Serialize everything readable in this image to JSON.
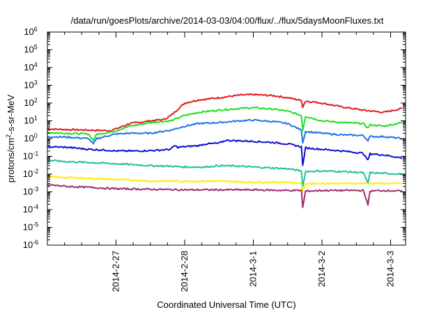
{
  "chart_data": {
    "type": "line",
    "title": "/data/run/goesPlots/archive/2014-03-03/04:00/flux/../flux/5daysMoonFluxes.txt",
    "xlabel": "Coordinated Universal Time (UTC)",
    "ylabel": {
      "prefix": "protons/cm",
      "sup": "2",
      "suffix": "-s-sr-MeV"
    },
    "yscale": "log",
    "ylim": [
      1e-06,
      1000000.0
    ],
    "xlim": [
      "2014-02-26 00:00",
      "2014-03-03 04:00"
    ],
    "grid": false,
    "legend": "none",
    "y_ticks": [
      {
        "base": "10",
        "exp": "6"
      },
      {
        "base": "10",
        "exp": "5"
      },
      {
        "base": "10",
        "exp": "4"
      },
      {
        "base": "10",
        "exp": "3"
      },
      {
        "base": "10",
        "exp": "2"
      },
      {
        "base": "10",
        "exp": "1"
      },
      {
        "base": "10",
        "exp": "0"
      },
      {
        "base": "10",
        "exp": "-1"
      },
      {
        "base": "10",
        "exp": "-2"
      },
      {
        "base": "10",
        "exp": "-3"
      },
      {
        "base": "10",
        "exp": "-4"
      },
      {
        "base": "10",
        "exp": "-5"
      },
      {
        "base": "10",
        "exp": "-6"
      }
    ],
    "x_ticks": [
      "2014-2-27",
      "2014-2-28",
      "2014-3-1",
      "2014-3-2",
      "2014-3-3"
    ],
    "series": [
      {
        "color": "#e41a1c",
        "points": [
          [
            0,
            3.5
          ],
          [
            0.3,
            3.2
          ],
          [
            0.6,
            3.0
          ],
          [
            0.9,
            2.8
          ],
          [
            1.0,
            3.5
          ],
          [
            1.2,
            7
          ],
          [
            1.5,
            10
          ],
          [
            1.7,
            12
          ],
          [
            1.8,
            20
          ],
          [
            2.0,
            100
          ],
          [
            2.2,
            150
          ],
          [
            2.5,
            200
          ],
          [
            2.8,
            280
          ],
          [
            3.0,
            300
          ],
          [
            3.3,
            260
          ],
          [
            3.5,
            200
          ],
          [
            3.7,
            140
          ],
          [
            3.72,
            60
          ],
          [
            3.76,
            130
          ],
          [
            4.0,
            100
          ],
          [
            4.3,
            60
          ],
          [
            4.6,
            40
          ],
          [
            4.9,
            30
          ],
          [
            5.17,
            50
          ]
        ]
      },
      {
        "color": "#22dd22",
        "points": [
          [
            0,
            2.2
          ],
          [
            0.3,
            2.0
          ],
          [
            0.6,
            1.8
          ],
          [
            0.67,
            0.8
          ],
          [
            0.72,
            1.8
          ],
          [
            0.9,
            2.2
          ],
          [
            1.0,
            2.8
          ],
          [
            1.2,
            5
          ],
          [
            1.5,
            8
          ],
          [
            1.8,
            10
          ],
          [
            2.0,
            20
          ],
          [
            2.2,
            30
          ],
          [
            2.5,
            40
          ],
          [
            2.8,
            50
          ],
          [
            3.0,
            55
          ],
          [
            3.3,
            45
          ],
          [
            3.5,
            35
          ],
          [
            3.7,
            20
          ],
          [
            3.72,
            3
          ],
          [
            3.76,
            18
          ],
          [
            4.0,
            10
          ],
          [
            4.3,
            8
          ],
          [
            4.6,
            7
          ],
          [
            4.67,
            4
          ],
          [
            4.7,
            6
          ],
          [
            4.9,
            5
          ],
          [
            5.17,
            8
          ]
        ]
      },
      {
        "color": "#1e78e6",
        "points": [
          [
            0,
            1.3
          ],
          [
            0.3,
            1.2
          ],
          [
            0.6,
            1.0
          ],
          [
            0.67,
            0.5
          ],
          [
            0.72,
            1.0
          ],
          [
            0.9,
            1.5
          ],
          [
            1.0,
            1.8
          ],
          [
            1.2,
            2
          ],
          [
            1.5,
            2
          ],
          [
            1.8,
            3
          ],
          [
            2.0,
            5
          ],
          [
            2.2,
            7
          ],
          [
            2.5,
            8
          ],
          [
            2.8,
            10
          ],
          [
            3.0,
            11
          ],
          [
            3.3,
            9
          ],
          [
            3.5,
            7
          ],
          [
            3.7,
            3
          ],
          [
            3.72,
            0.6
          ],
          [
            3.76,
            2.5
          ],
          [
            4.0,
            2.0
          ],
          [
            4.3,
            1.6
          ],
          [
            4.6,
            1.5
          ],
          [
            4.67,
            0.8
          ],
          [
            4.7,
            1.3
          ],
          [
            4.9,
            1.3
          ],
          [
            5.17,
            1.0
          ]
        ]
      },
      {
        "color": "#1010cc",
        "points": [
          [
            0,
            0.35
          ],
          [
            0.3,
            0.32
          ],
          [
            0.6,
            0.25
          ],
          [
            0.9,
            0.22
          ],
          [
            1.0,
            0.2
          ],
          [
            1.3,
            0.2
          ],
          [
            1.6,
            0.22
          ],
          [
            1.8,
            0.25
          ],
          [
            1.85,
            0.4
          ],
          [
            1.9,
            0.32
          ],
          [
            2.0,
            0.35
          ],
          [
            2.2,
            0.4
          ],
          [
            2.3,
            0.5
          ],
          [
            2.5,
            0.55
          ],
          [
            2.6,
            0.8
          ],
          [
            2.8,
            0.75
          ],
          [
            3.0,
            0.7
          ],
          [
            3.3,
            0.6
          ],
          [
            3.5,
            0.5
          ],
          [
            3.7,
            0.35
          ],
          [
            3.72,
            0.03
          ],
          [
            3.76,
            0.3
          ],
          [
            4.0,
            0.25
          ],
          [
            4.3,
            0.2
          ],
          [
            4.6,
            0.15
          ],
          [
            4.67,
            0.06
          ],
          [
            4.7,
            0.14
          ],
          [
            4.9,
            0.12
          ],
          [
            5.17,
            0.08
          ]
        ]
      },
      {
        "color": "#20c0a0",
        "points": [
          [
            0,
            0.06
          ],
          [
            0.3,
            0.05
          ],
          [
            0.6,
            0.045
          ],
          [
            0.9,
            0.04
          ],
          [
            1.2,
            0.035
          ],
          [
            1.5,
            0.03
          ],
          [
            1.8,
            0.028
          ],
          [
            2.0,
            0.025
          ],
          [
            2.3,
            0.025
          ],
          [
            2.5,
            0.03
          ],
          [
            2.8,
            0.028
          ],
          [
            3.0,
            0.025
          ],
          [
            3.3,
            0.022
          ],
          [
            3.5,
            0.02
          ],
          [
            3.7,
            0.015
          ],
          [
            3.72,
            0.002
          ],
          [
            3.76,
            0.014
          ],
          [
            4.0,
            0.015
          ],
          [
            4.3,
            0.014
          ],
          [
            4.6,
            0.012
          ],
          [
            4.67,
            0.003
          ],
          [
            4.7,
            0.012
          ],
          [
            4.9,
            0.011
          ],
          [
            5.17,
            0.01
          ]
        ]
      },
      {
        "color": "#ffee00",
        "points": [
          [
            0,
            0.007
          ],
          [
            0.5,
            0.006
          ],
          [
            1.0,
            0.005
          ],
          [
            1.5,
            0.004
          ],
          [
            2.0,
            0.004
          ],
          [
            2.5,
            0.004
          ],
          [
            3.0,
            0.0035
          ],
          [
            3.5,
            0.0035
          ],
          [
            3.7,
            0.003
          ],
          [
            3.72,
            0.001
          ],
          [
            3.76,
            0.003
          ],
          [
            4.2,
            0.003
          ],
          [
            4.67,
            0.003
          ],
          [
            5.17,
            0.003
          ]
        ]
      },
      {
        "color": "#9b2d6e",
        "points": [
          [
            0,
            0.0025
          ],
          [
            0.3,
            0.002
          ],
          [
            0.6,
            0.0018
          ],
          [
            1.0,
            0.0015
          ],
          [
            1.5,
            0.0014
          ],
          [
            2.0,
            0.0013
          ],
          [
            2.5,
            0.0013
          ],
          [
            3.0,
            0.0013
          ],
          [
            3.5,
            0.0012
          ],
          [
            3.7,
            0.0012
          ],
          [
            3.72,
            0.00013
          ],
          [
            3.76,
            0.0011
          ],
          [
            4.0,
            0.0012
          ],
          [
            4.3,
            0.0012
          ],
          [
            4.6,
            0.0012
          ],
          [
            4.67,
            0.0002
          ],
          [
            4.7,
            0.0011
          ],
          [
            4.9,
            0.0012
          ],
          [
            5.17,
            0.0011
          ]
        ]
      }
    ]
  }
}
